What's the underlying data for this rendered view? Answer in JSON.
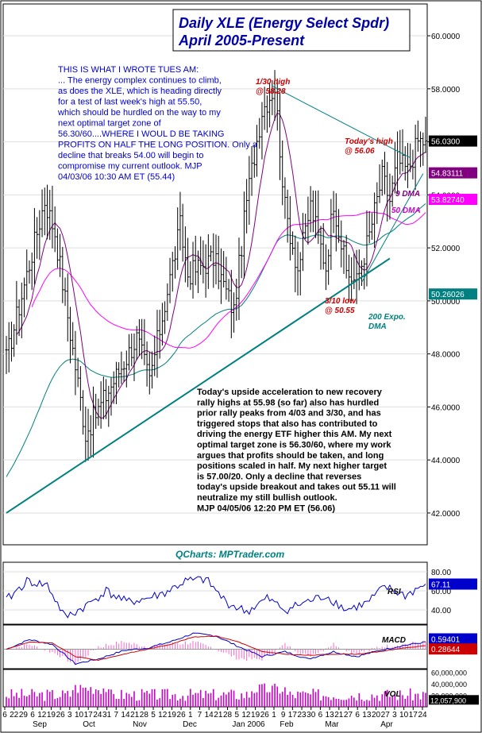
{
  "chart_data": {
    "type": "candlestick",
    "title_line1": "Daily XLE (Energy Select Spdr)",
    "title_line2": "April 2005-Present",
    "watermark": "QCharts: MPTrader.com",
    "ylim": [
      40.8,
      61.2
    ],
    "y_ticks": [
      "60.0000",
      "58.0000",
      "56.0000",
      "54.0000",
      "52.0000",
      "50.0000",
      "48.0000",
      "46.0000",
      "44.0000",
      "42.0000"
    ],
    "y_tick_values": [
      60,
      58,
      56,
      54,
      52,
      50,
      48,
      46,
      44,
      42
    ],
    "price_tags": [
      {
        "label": "56.0300",
        "value": 56.03,
        "color": "#ffffff",
        "bg": "#000000"
      },
      {
        "label": "54.83111",
        "value": 54.83,
        "color": "#ffffff",
        "bg": "#800080"
      },
      {
        "label": "53.82740",
        "value": 53.83,
        "color": "#ffffff",
        "bg": "#ff00ff"
      },
      {
        "label": "50.26026",
        "value": 50.26,
        "color": "#ffffff",
        "bg": "#008080"
      }
    ],
    "series_labels": {
      "ma9": "9 DMA",
      "ma50": "50 DMA",
      "ema200": "200 Expo. DMA"
    },
    "annotations": {
      "high_jan": "1/30 high @ 58.28",
      "high_today": "Today's high @ 56.06",
      "low_mar": "3/10 low @ 50.55"
    },
    "commentary_top": "THIS IS WHAT I WROTE TUES AM:\n\n... The energy complex continues to climb, as does the XLE, which is heading directly for a test of last week's high at 55.50, which should be hurdled on the way to my next optimal target zone of 56.30/60....WHERE I WOUL D BE TAKING PROFITS ON HALF THE LONG POSITION. Only a decline that breaks 54.00 will begin to compromise my current outlook. MJP 04/03/06 10:30 AM ET (55.44)",
    "commentary_bottom": "Today's upside acceleration to new recovery rally highs at 55.98 (so far) also has hurdled prior rally peaks from 4/03 and 3/30, and has triggered stops that also has contributed to driving the energy ETF higher this AM. My next optimal target zone is 56.30/60, where my work argues that profits should be taken, and long positions scaled in half. My next higher target is 57.00/20. Only a decline that reverses today's upside breakout and takes out 55.11 will neutralize my still bullish outlook.\nMJP 04/05/06  12:20 PM ET (56.06)",
    "rsi": {
      "label": "RSI",
      "last_tag": "67.11",
      "ticks": [
        "80.00",
        "60.00",
        "40.00"
      ],
      "tick_values": [
        80,
        60,
        40
      ],
      "ylim": [
        25,
        90
      ]
    },
    "macd": {
      "label": "MACD",
      "tags": [
        "0.59401",
        "0.28644"
      ],
      "tag_values": [
        0.594,
        0.286
      ],
      "ylim": [
        -1.6,
        2.0
      ]
    },
    "volume": {
      "label": "VOL",
      "ticks": [
        "60,000,000",
        "40,000,000",
        "20,000,000"
      ],
      "tick_values": [
        60000000,
        40000000,
        20000000
      ],
      "last_tag": "12,057,900",
      "ylim": [
        0,
        65000000
      ]
    },
    "x_day_labels": [
      "6",
      "22",
      "29",
      "6",
      "12",
      "19",
      "26",
      "3",
      "10",
      "17",
      "24",
      "31",
      "7",
      "14",
      "21",
      "28",
      "5",
      "12",
      "19",
      "26",
      "1",
      "7",
      "14",
      "21",
      "28",
      "5",
      "12",
      "19",
      "26",
      "1",
      "9",
      "17",
      "23",
      "30",
      "6",
      "13",
      "21",
      "27",
      "6",
      "13",
      "20",
      "27",
      "3",
      "10",
      "17",
      "24"
    ],
    "x_month_labels": [
      "Sep",
      "Oct",
      "Nov",
      "Dec",
      "Jan 2006",
      "Feb",
      "Mar",
      "Apr"
    ],
    "anchors_date_index": [
      0,
      15,
      19,
      31,
      51,
      56,
      68,
      71,
      81,
      89,
      94,
      100,
      105,
      109,
      114,
      119,
      125,
      128,
      133,
      137,
      142,
      147,
      150,
      153,
      157,
      161
    ],
    "anchors_close": [
      47.8,
      53.8,
      52.6,
      45.0,
      48.6,
      47.0,
      52.8,
      51.0,
      51.6,
      49.6,
      53.8,
      57.2,
      58.1,
      53.5,
      51.2,
      53.6,
      51.3,
      53.8,
      51.1,
      50.7,
      52.5,
      54.7,
      53.8,
      55.3,
      54.9,
      56.03
    ],
    "rsi_anchors": [
      50,
      70,
      66,
      32,
      44,
      60,
      48,
      52,
      58,
      70,
      72,
      48,
      38,
      52,
      40,
      48,
      55,
      40,
      47,
      64,
      55,
      67.11
    ],
    "macd_anchors": [
      0.0,
      0.8,
      0.4,
      -1.2,
      -0.8,
      -0.1,
      0.1,
      0.6,
      1.3,
      1.1,
      0.2,
      -0.6,
      -0.2,
      -0.8,
      -0.2,
      -0.6,
      -0.1,
      0.3,
      0.594
    ],
    "signal_anchors": [
      0.0,
      0.6,
      0.5,
      -0.6,
      -0.9,
      -0.4,
      0.0,
      0.4,
      1.0,
      1.1,
      0.6,
      -0.2,
      -0.4,
      -0.5,
      -0.4,
      -0.4,
      -0.2,
      0.1,
      0.286
    ],
    "trendline_lower": {
      "from": {
        "index": 0,
        "value": 42.0
      },
      "to": {
        "index": 150,
        "value": 51.6
      }
    },
    "channel_upper": {
      "from": {
        "index": 104,
        "value": 58.1
      },
      "to": {
        "index": 158,
        "value": 55.4
      }
    },
    "channel_lower": {
      "from": {
        "index": 139,
        "value": 50.7
      },
      "to": {
        "index": 163,
        "value": 54.8
      }
    }
  }
}
